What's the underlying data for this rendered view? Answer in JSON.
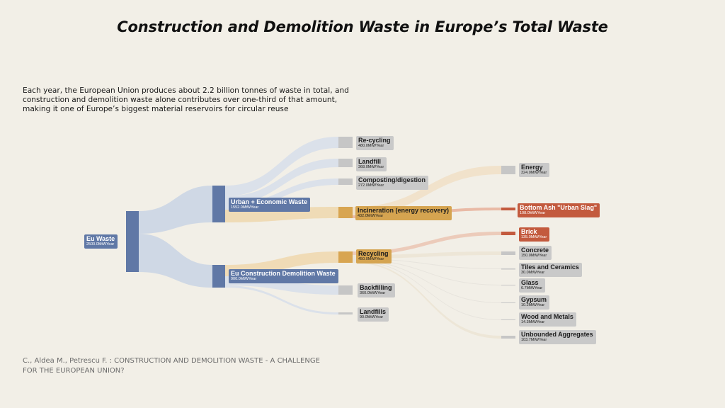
{
  "title": "Construction and Demolition Waste in Europe’s Total Waste",
  "intro": [
    "Each year, the European Union produces about 2.2 billion tonnes of waste in total, and",
    "construction and demolition waste alone contributes over one-third of that amount,",
    "making it one of Europe’s biggest material reservoirs for circular reuse"
  ],
  "citation": [
    "C., Aldea M., Petrescu F. : CONSTRUCTION AND DEMOLITION WASTE - A CHALLENGE",
    "FOR THE EUROPEAN UNION?"
  ],
  "colors": {
    "background": "#f2efe7",
    "blue_node": "#6078a6",
    "blue_flow": "#c9d3e4",
    "orange_node": "#d8a551",
    "orange_flow": "#f0d8b0",
    "red_node": "#c35a3e",
    "grey_node": "#c6c6c6",
    "grey_flow": "#e2e0dc"
  },
  "nodes": {
    "eu_waste": {
      "name": "Eu Waste",
      "value": "2500.0MtWYear"
    },
    "urban": {
      "name": "Urban + Economic Waste",
      "value": "1552.0MtWYear"
    },
    "construction": {
      "name": "Eu Construction Demolition Waste",
      "value": "900.0MtWYear"
    },
    "recycling_urban": {
      "name": "Re-cycling",
      "value": "480.0MtWYear"
    },
    "landfill": {
      "name": "Landfill",
      "value": "368.0MtWYear"
    },
    "composting": {
      "name": "Composting/digestion",
      "value": "272.0MtWYear"
    },
    "incineration": {
      "name": "Incineration (energy recovery)",
      "value": "432.0MtWYear"
    },
    "energy": {
      "name": "Energy",
      "value": "324.0MtWYear"
    },
    "bottom_ash": {
      "name": "Bottom Ash \"Urban Slag\"",
      "value": "108.0MtWYear"
    },
    "recycling": {
      "name": "Recycling",
      "value": "450.0MtWYear"
    },
    "backfilling": {
      "name": "Backfilling",
      "value": "360.0MtWYear"
    },
    "landfills": {
      "name": "Landfills",
      "value": "90.0MtWYear"
    },
    "brick": {
      "name": "Brick",
      "value": "135.0MtWYear"
    },
    "concrete": {
      "name": "Concrete",
      "value": "150.0MtWYear"
    },
    "tiles": {
      "name": "Tiles and Ceramics",
      "value": "30.0MtWYear"
    },
    "glass": {
      "name": "Glass",
      "value": "6.7MtWYear"
    },
    "gypsum": {
      "name": "Gypsum",
      "value": "10.2MtWYear"
    },
    "wood_metals": {
      "name": "Wood and Metals",
      "value": "14.3MtWYear"
    },
    "aggregates": {
      "name": "Unbounded Aggregates",
      "value": "103.7MtWYear"
    }
  }
}
